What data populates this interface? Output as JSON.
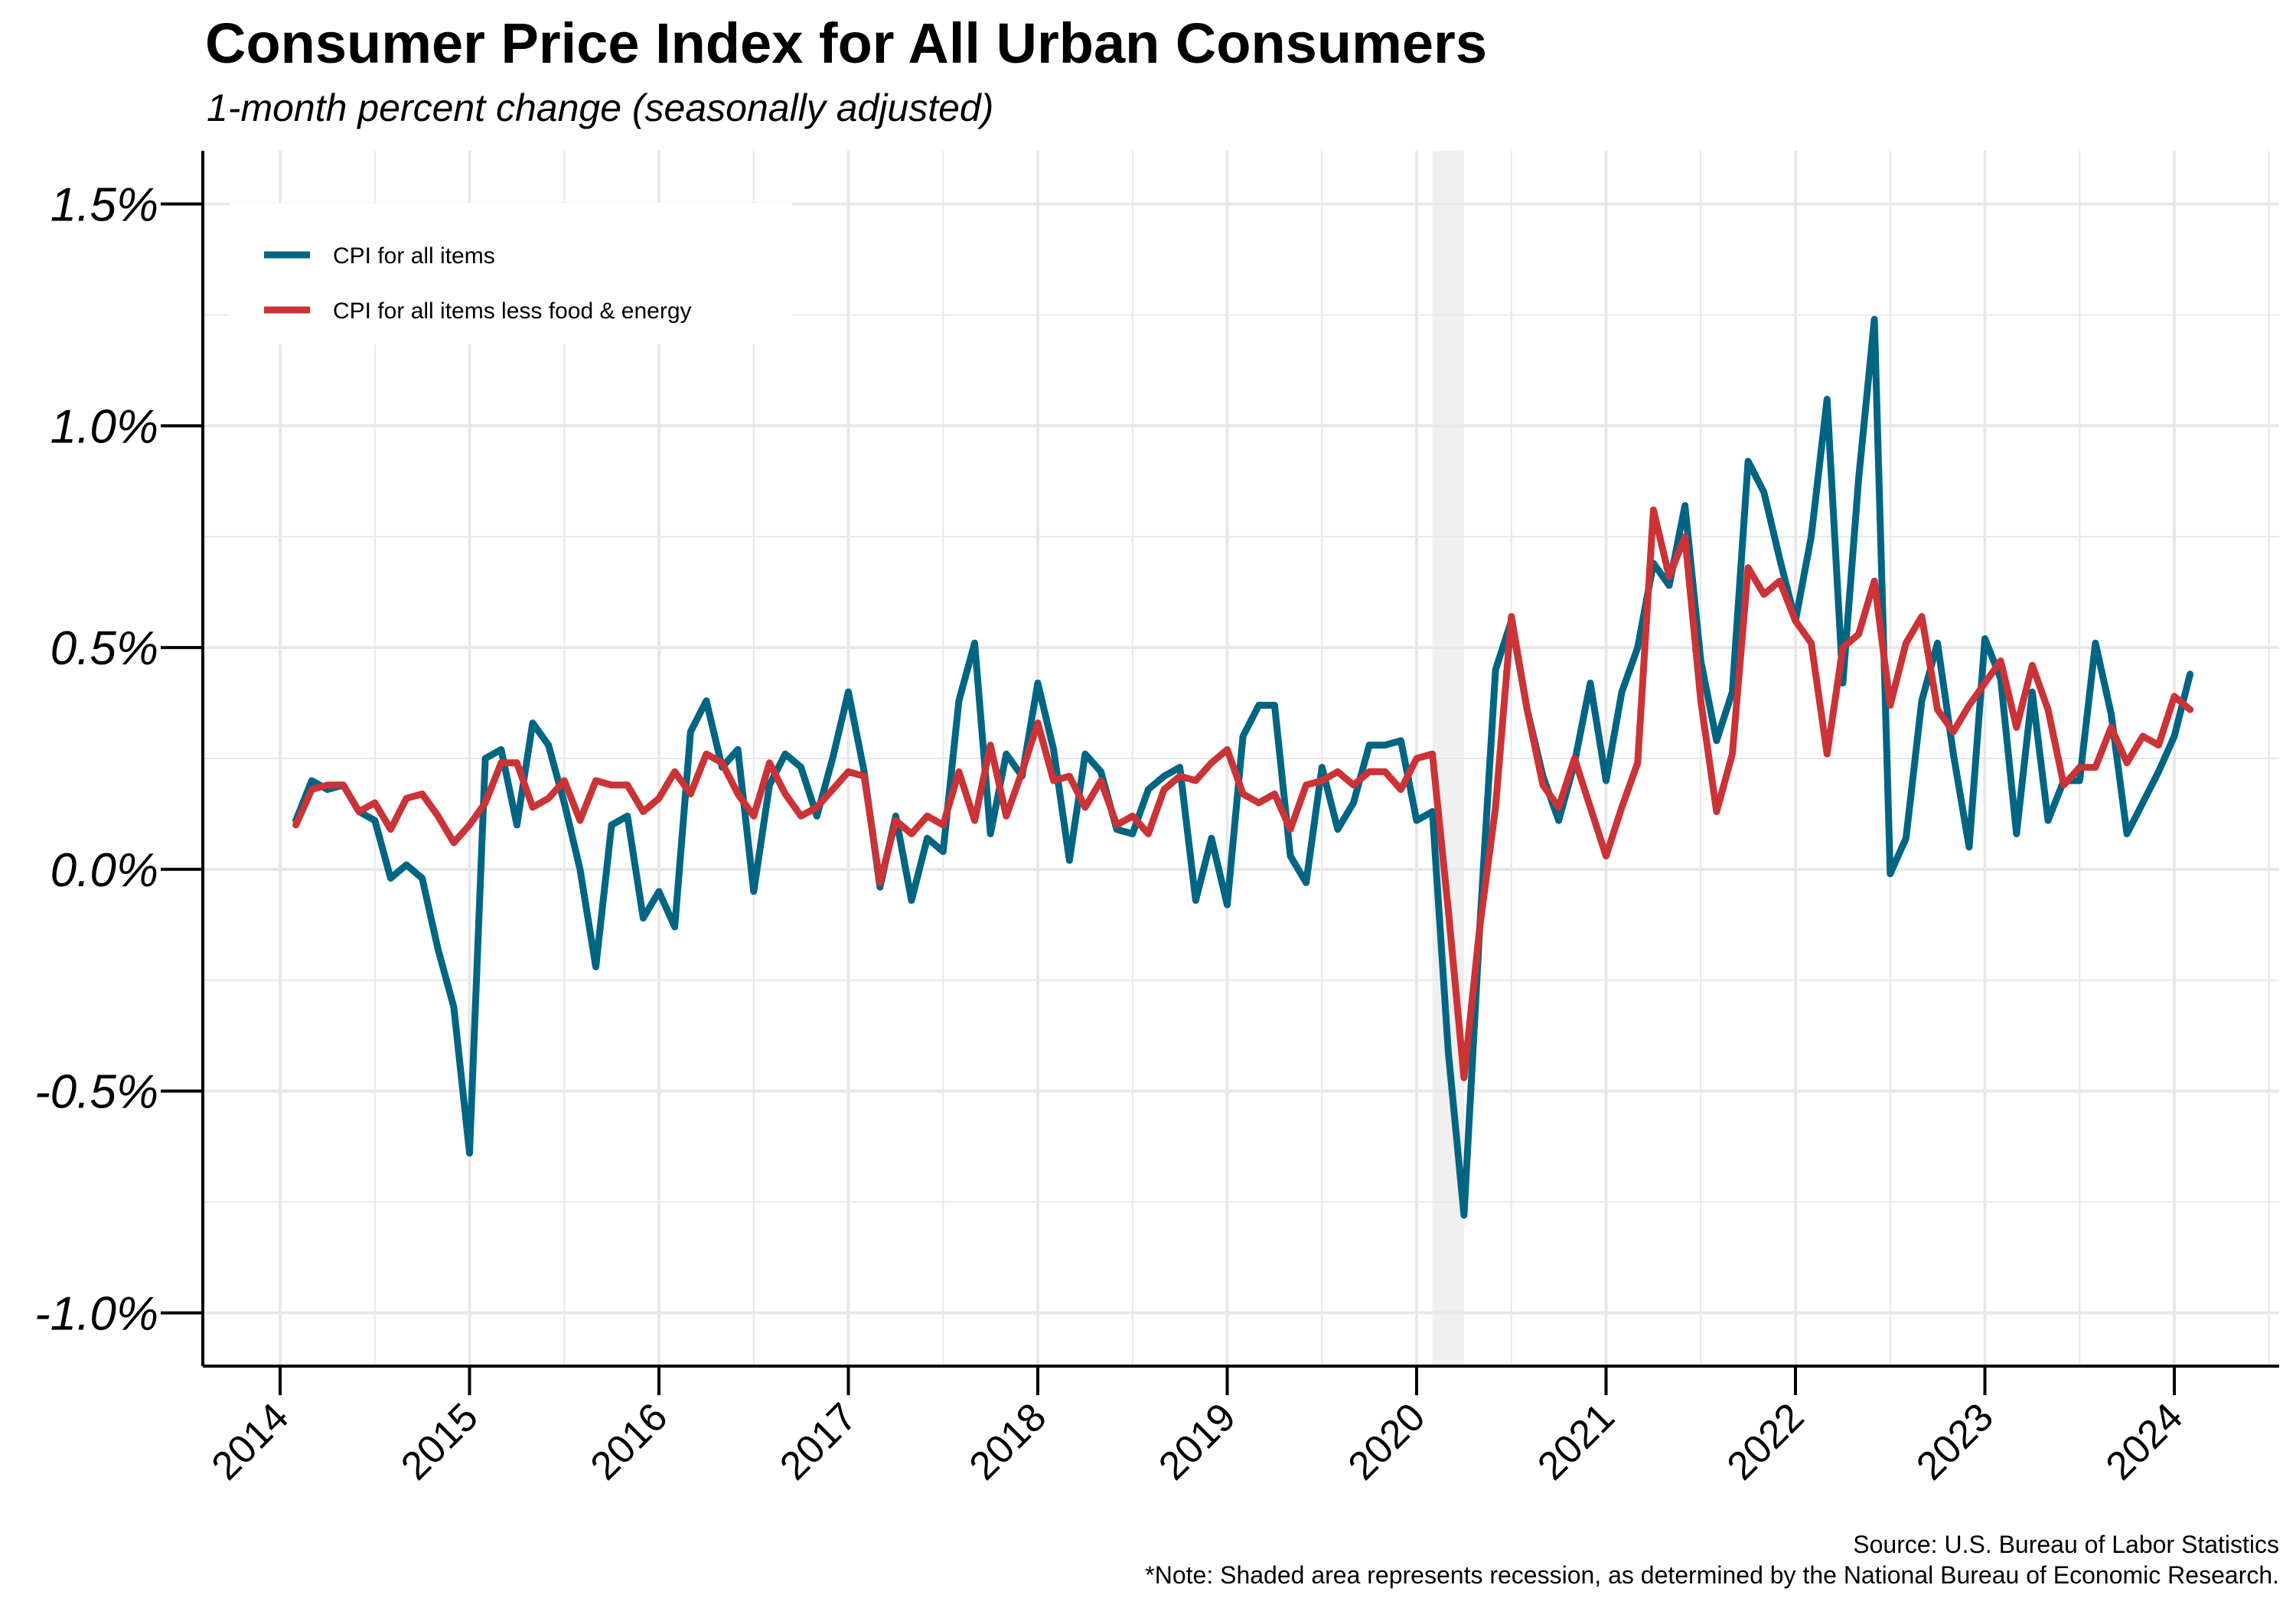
{
  "header": {
    "title": "Consumer Price Index for All Urban Consumers",
    "subtitle": "1-month percent change (seasonally adjusted)"
  },
  "footer": {
    "source": "Source: U.S. Bureau of Labor Statistics",
    "note": "*Note: Shaded area represents recession, as determined by the National Bureau of Economic Research."
  },
  "colors": {
    "all_items": "#006583",
    "core": "#cb3336",
    "grid": "#e8e8e8",
    "recession": "#f0f0f0"
  },
  "chart_data": {
    "type": "line",
    "title": "Consumer Price Index for All Urban Consumers",
    "subtitle": "1-month percent change (seasonally adjusted)",
    "xlabel": "",
    "ylabel": "",
    "x_start": "2014-02",
    "x_ticks": [
      "2014",
      "2015",
      "2016",
      "2017",
      "2018",
      "2019",
      "2020",
      "2021",
      "2022",
      "2023",
      "2024"
    ],
    "ylim": [
      -1.12,
      1.62
    ],
    "y_ticks": [
      -1.0,
      -0.5,
      0.0,
      0.5,
      1.0,
      1.5
    ],
    "y_tick_labels": [
      "-1.0%",
      "-0.5%",
      "0.0%",
      "0.5%",
      "1.0%",
      "1.5%"
    ],
    "grid": true,
    "legend_position": "top-left",
    "recession": {
      "start": "2020-02",
      "end": "2020-04"
    },
    "series": [
      {
        "name": "CPI for all items",
        "color": "#006583",
        "values": [
          0.11,
          0.2,
          0.18,
          0.19,
          0.13,
          0.11,
          -0.02,
          0.01,
          -0.02,
          -0.18,
          -0.31,
          -0.64,
          0.25,
          0.27,
          0.1,
          0.33,
          0.28,
          0.15,
          0.0,
          -0.22,
          0.1,
          0.12,
          -0.11,
          -0.05,
          -0.13,
          0.31,
          0.38,
          0.23,
          0.27,
          -0.05,
          0.19,
          0.26,
          0.23,
          0.12,
          0.25,
          0.4,
          0.22,
          -0.04,
          0.12,
          -0.07,
          0.07,
          0.04,
          0.38,
          0.51,
          0.08,
          0.26,
          0.21,
          0.42,
          0.27,
          0.02,
          0.26,
          0.22,
          0.09,
          0.08,
          0.18,
          0.21,
          0.23,
          -0.07,
          0.07,
          -0.08,
          0.3,
          0.37,
          0.37,
          0.03,
          -0.03,
          0.23,
          0.09,
          0.15,
          0.28,
          0.28,
          0.29,
          0.11,
          0.13,
          -0.41,
          -0.78,
          -0.13,
          0.45,
          0.56,
          0.36,
          0.21,
          0.11,
          0.24,
          0.42,
          0.2,
          0.4,
          0.5,
          0.69,
          0.64,
          0.82,
          0.47,
          0.29,
          0.4,
          0.92,
          0.85,
          0.7,
          0.56,
          0.75,
          1.06,
          0.42,
          0.88,
          1.24,
          -0.01,
          0.07,
          0.38,
          0.51,
          0.26,
          0.05,
          0.52,
          0.43,
          0.08,
          0.4,
          0.11,
          0.2,
          0.2,
          0.51,
          0.35,
          0.08,
          0.15,
          0.22,
          0.3,
          0.44
        ]
      },
      {
        "name": "CPI for all items less food & energy",
        "color": "#cb3336",
        "values": [
          0.1,
          0.18,
          0.19,
          0.19,
          0.13,
          0.15,
          0.09,
          0.16,
          0.17,
          0.12,
          0.06,
          0.1,
          0.15,
          0.24,
          0.24,
          0.14,
          0.16,
          0.2,
          0.11,
          0.2,
          0.19,
          0.19,
          0.13,
          0.16,
          0.22,
          0.17,
          0.26,
          0.24,
          0.17,
          0.12,
          0.24,
          0.17,
          0.12,
          0.14,
          0.18,
          0.22,
          0.21,
          -0.03,
          0.11,
          0.08,
          0.12,
          0.1,
          0.22,
          0.11,
          0.28,
          0.12,
          0.22,
          0.33,
          0.2,
          0.21,
          0.14,
          0.2,
          0.1,
          0.12,
          0.08,
          0.18,
          0.21,
          0.2,
          0.24,
          0.27,
          0.17,
          0.15,
          0.17,
          0.09,
          0.19,
          0.2,
          0.22,
          0.19,
          0.22,
          0.22,
          0.18,
          0.25,
          0.26,
          -0.09,
          -0.47,
          -0.13,
          0.14,
          0.57,
          0.36,
          0.19,
          0.14,
          0.25,
          0.14,
          0.03,
          0.14,
          0.24,
          0.81,
          0.66,
          0.75,
          0.38,
          0.13,
          0.26,
          0.68,
          0.62,
          0.65,
          0.56,
          0.51,
          0.26,
          0.5,
          0.53,
          0.65,
          0.37,
          0.51,
          0.57,
          0.36,
          0.31,
          0.37,
          0.42,
          0.47,
          0.32,
          0.46,
          0.36,
          0.19,
          0.23,
          0.23,
          0.32,
          0.24,
          0.3,
          0.28,
          0.39,
          0.36
        ]
      }
    ]
  }
}
